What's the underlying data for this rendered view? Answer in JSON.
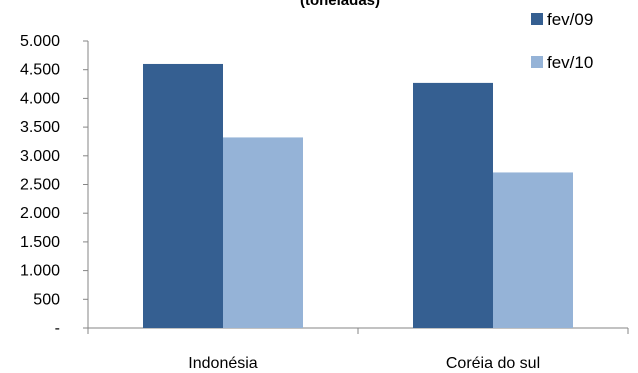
{
  "chart_data": {
    "type": "bar",
    "title": "(toneladas)",
    "categories": [
      "Indonésia",
      "Coréia do sul"
    ],
    "series": [
      {
        "name": "fev/09",
        "values": [
          4600,
          4270
        ],
        "color": "#355F91"
      },
      {
        "name": "fev/10",
        "values": [
          3320,
          2710
        ],
        "color": "#95B3D7"
      }
    ],
    "ylim": [
      0,
      5000
    ],
    "yticks": [
      0,
      500,
      1000,
      1500,
      2000,
      2500,
      3000,
      3500,
      4000,
      4500,
      5000
    ],
    "ytick_labels": [
      "-",
      "500",
      "1.000",
      "1.500",
      "2.000",
      "2.500",
      "3.000",
      "3.500",
      "4.000",
      "4.500",
      "5.000"
    ],
    "grid": false,
    "legend_position": "top-right",
    "axis_color": "#868686"
  }
}
